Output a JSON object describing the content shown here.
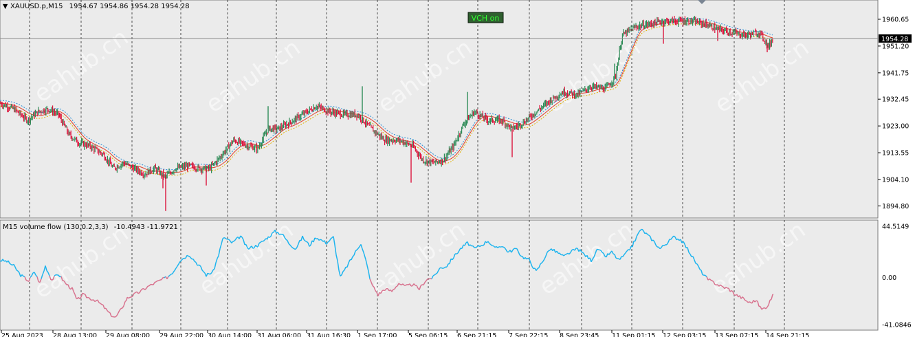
{
  "window": {
    "symbol_title": "XAUUSD.p,M15",
    "ohlc_text": "1954.67 1954.86 1954.28 1954.28",
    "badge": "VCH on",
    "watermark": "eahub.cn"
  },
  "indicator": {
    "title": "M15 volume flow (130,0.2,3,3)",
    "values_text": "-10.4943 -11.9721"
  },
  "colors": {
    "up": "#2e8b57",
    "down": "#dc143c",
    "flow_pos": "#1eb4ee",
    "flow_neg": "#d8728e",
    "ma_red": "#e0402a",
    "ma_blue": "#2b8fd6",
    "ma_yellow": "#e0b000",
    "badge_bg": "#2f5f2f",
    "badge_text": "#32ff32"
  },
  "chart_data": [
    {
      "type": "candlestick",
      "symbol": "XAUUSD.p",
      "timeframe": "M15",
      "ylim": [
        1891.0,
        1965.5
      ],
      "yticks": [
        "1960.65",
        "1951.20",
        "1941.75",
        "1932.45",
        "1923.00",
        "1913.55",
        "1904.10",
        "1894.80"
      ],
      "current_price": "1954.28",
      "grid": "vertical-dashed",
      "price_path": [
        [
          0,
          1931
        ],
        [
          20,
          1929
        ],
        [
          40,
          1925
        ],
        [
          55,
          1928
        ],
        [
          70,
          1929
        ],
        [
          85,
          1927
        ],
        [
          100,
          1920
        ],
        [
          115,
          1917
        ],
        [
          130,
          1916
        ],
        [
          150,
          1913
        ],
        [
          165,
          1908
        ],
        [
          180,
          1910
        ],
        [
          195,
          1908
        ],
        [
          210,
          1906
        ],
        [
          225,
          1908
        ],
        [
          240,
          1905
        ],
        [
          255,
          1908
        ],
        [
          275,
          1909
        ],
        [
          290,
          1908
        ],
        [
          305,
          1908
        ],
        [
          320,
          1912
        ],
        [
          340,
          1918
        ],
        [
          360,
          1916
        ],
        [
          375,
          1915
        ],
        [
          390,
          1922
        ],
        [
          405,
          1922
        ],
        [
          420,
          1924
        ],
        [
          440,
          1927
        ],
        [
          460,
          1930
        ],
        [
          480,
          1928
        ],
        [
          500,
          1927
        ],
        [
          520,
          1927
        ],
        [
          540,
          1922
        ],
        [
          560,
          1918
        ],
        [
          580,
          1918
        ],
        [
          600,
          1916
        ],
        [
          615,
          1911
        ],
        [
          630,
          1910
        ],
        [
          645,
          1911
        ],
        [
          660,
          1916
        ],
        [
          675,
          1924
        ],
        [
          690,
          1928
        ],
        [
          710,
          1925
        ],
        [
          730,
          1925
        ],
        [
          745,
          1922
        ],
        [
          760,
          1924
        ],
        [
          780,
          1928
        ],
        [
          800,
          1932
        ],
        [
          820,
          1935
        ],
        [
          840,
          1934
        ],
        [
          860,
          1937
        ],
        [
          880,
          1936
        ],
        [
          895,
          1940
        ],
        [
          905,
          1955
        ],
        [
          925,
          1958
        ],
        [
          945,
          1959
        ],
        [
          965,
          1960
        ],
        [
          985,
          1960
        ],
        [
          1005,
          1960
        ],
        [
          1025,
          1959
        ],
        [
          1045,
          1957
        ],
        [
          1065,
          1956
        ],
        [
          1085,
          1955
        ],
        [
          1105,
          1956
        ],
        [
          1118,
          1951
        ],
        [
          1125,
          1954
        ]
      ],
      "spikes": [
        [
          241,
          1893
        ],
        [
          237,
          1901
        ],
        [
          300,
          1902
        ],
        [
          527,
          1937
        ],
        [
          598,
          1903
        ],
        [
          745,
          1912
        ],
        [
          820,
          1935
        ],
        [
          894,
          1945
        ],
        [
          965,
          1952
        ],
        [
          1044,
          1953
        ],
        [
          1116,
          1949
        ],
        [
          680,
          1935
        ],
        [
          390,
          1930
        ]
      ],
      "x_labels": [
        "25 Aug 2023",
        "28 Aug 13:00",
        "29 Aug 08:00",
        "29 Aug 22:00",
        "30 Aug 14:00",
        "31 Aug 06:00",
        "31 Aug 16:30",
        "1 Sep 17:00",
        "5 Sep 06:15",
        "6 Sep 21:15",
        "7 Sep 22:15",
        "8 Sep 23:45",
        "11 Sep 01:15",
        "12 Sep 03:15",
        "13 Sep 07:15",
        "14 Sep 21:15"
      ]
    },
    {
      "type": "line",
      "name": "M15 volume flow (130,0.2,3,3)",
      "ylim": [
        -41.0846,
        44.5149
      ],
      "yticks": [
        "44.5149",
        "0.00",
        "-41.0846"
      ],
      "path": [
        [
          0,
          15
        ],
        [
          10,
          14
        ],
        [
          20,
          10
        ],
        [
          30,
          2
        ],
        [
          42,
          -3
        ],
        [
          50,
          5
        ],
        [
          58,
          -5
        ],
        [
          66,
          10
        ],
        [
          75,
          -2
        ],
        [
          85,
          3
        ],
        [
          95,
          -5
        ],
        [
          105,
          -10
        ],
        [
          112,
          -20
        ],
        [
          120,
          -15
        ],
        [
          130,
          -18
        ],
        [
          140,
          -20
        ],
        [
          150,
          -25
        ],
        [
          160,
          -32
        ],
        [
          168,
          -35
        ],
        [
          176,
          -28
        ],
        [
          185,
          -18
        ],
        [
          195,
          -15
        ],
        [
          205,
          -12
        ],
        [
          215,
          -8
        ],
        [
          225,
          -5
        ],
        [
          235,
          -2
        ],
        [
          243,
          0
        ],
        [
          252,
          5
        ],
        [
          262,
          15
        ],
        [
          275,
          20
        ],
        [
          290,
          10
        ],
        [
          300,
          2
        ],
        [
          310,
          5
        ],
        [
          318,
          20
        ],
        [
          325,
          35
        ],
        [
          338,
          30
        ],
        [
          350,
          36
        ],
        [
          360,
          25
        ],
        [
          375,
          28
        ],
        [
          390,
          35
        ],
        [
          400,
          40
        ],
        [
          410,
          38
        ],
        [
          420,
          30
        ],
        [
          430,
          25
        ],
        [
          440,
          35
        ],
        [
          450,
          28
        ],
        [
          460,
          35
        ],
        [
          475,
          30
        ],
        [
          485,
          35
        ],
        [
          495,
          0
        ],
        [
          505,
          10
        ],
        [
          515,
          20
        ],
        [
          525,
          30
        ],
        [
          532,
          15
        ],
        [
          540,
          -5
        ],
        [
          550,
          -15
        ],
        [
          560,
          -10
        ],
        [
          570,
          -12
        ],
        [
          580,
          -5
        ],
        [
          590,
          -8
        ],
        [
          600,
          -6
        ],
        [
          610,
          -10
        ],
        [
          620,
          -2
        ],
        [
          630,
          0
        ],
        [
          640,
          8
        ],
        [
          650,
          10
        ],
        [
          660,
          18
        ],
        [
          670,
          25
        ],
        [
          680,
          30
        ],
        [
          690,
          25
        ],
        [
          700,
          28
        ],
        [
          710,
          32
        ],
        [
          720,
          25
        ],
        [
          730,
          28
        ],
        [
          740,
          22
        ],
        [
          750,
          25
        ],
        [
          760,
          18
        ],
        [
          770,
          15
        ],
        [
          780,
          5
        ],
        [
          790,
          15
        ],
        [
          800,
          25
        ],
        [
          810,
          22
        ],
        [
          820,
          18
        ],
        [
          830,
          22
        ],
        [
          840,
          25
        ],
        [
          850,
          20
        ],
        [
          860,
          15
        ],
        [
          870,
          25
        ],
        [
          880,
          18
        ],
        [
          890,
          22
        ],
        [
          900,
          15
        ],
        [
          910,
          20
        ],
        [
          920,
          28
        ],
        [
          932,
          42
        ],
        [
          940,
          38
        ],
        [
          950,
          32
        ],
        [
          960,
          25
        ],
        [
          970,
          30
        ],
        [
          980,
          35
        ],
        [
          990,
          33
        ],
        [
          1000,
          25
        ],
        [
          1010,
          15
        ],
        [
          1020,
          5
        ],
        [
          1030,
          -2
        ],
        [
          1040,
          -5
        ],
        [
          1050,
          -8
        ],
        [
          1060,
          -10
        ],
        [
          1070,
          -15
        ],
        [
          1080,
          -18
        ],
        [
          1090,
          -22
        ],
        [
          1100,
          -20
        ],
        [
          1108,
          -28
        ],
        [
          1116,
          -25
        ],
        [
          1125,
          -15
        ]
      ]
    }
  ]
}
